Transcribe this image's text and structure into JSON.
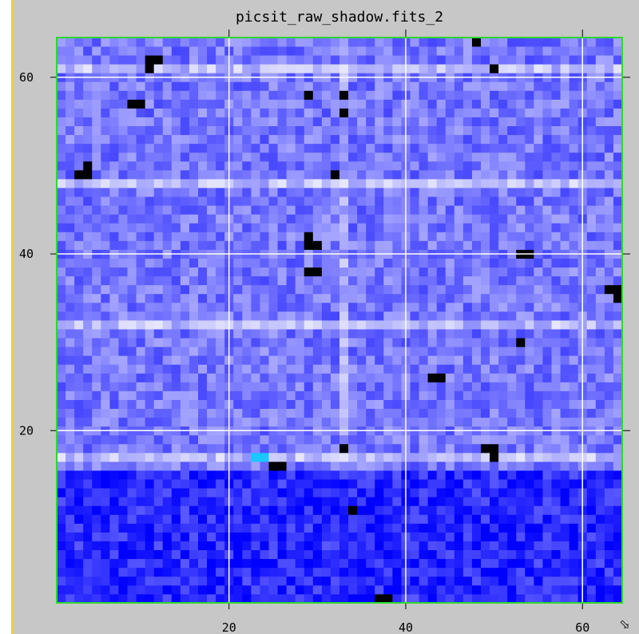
{
  "chart_data": {
    "type": "heatmap",
    "title": "picsit_raw_shadow.fits_2",
    "xlabel": "",
    "ylabel": "",
    "xlim": [
      0.5,
      64.5
    ],
    "ylim": [
      0.5,
      64.5
    ],
    "x_ticks": [
      20,
      40,
      60
    ],
    "y_ticks": [
      20,
      40,
      60
    ],
    "x_tick_labels": [
      "20",
      "40",
      "60"
    ],
    "y_tick_labels": [
      "20",
      "40",
      "60"
    ],
    "grid": true,
    "colormap": [
      "#000000",
      "#0000ff",
      "#8c8cff",
      "#d2d2ff"
    ],
    "accent_colors": {
      "grid": "#ffffff",
      "frame": "#2fd82f",
      "highlight_pixel": "#18c8ff"
    },
    "nx": 64,
    "ny": 64,
    "bright_rows": [
      17,
      32,
      48,
      61
    ],
    "dark_rows_below": 15,
    "bright_columns": [
      33
    ],
    "masked_pixels": [
      [
        48,
        64
      ],
      [
        11,
        62
      ],
      [
        12,
        62
      ],
      [
        11,
        61
      ],
      [
        50,
        61
      ],
      [
        29,
        58
      ],
      [
        33,
        58
      ],
      [
        9,
        57
      ],
      [
        10,
        57
      ],
      [
        33,
        56
      ],
      [
        4,
        50
      ],
      [
        3,
        49
      ],
      [
        4,
        49
      ],
      [
        32,
        49
      ],
      [
        29,
        42
      ],
      [
        29,
        41
      ],
      [
        30,
        41
      ],
      [
        53,
        40
      ],
      [
        54,
        40
      ],
      [
        29,
        38
      ],
      [
        30,
        38
      ],
      [
        63,
        36
      ],
      [
        64,
        36
      ],
      [
        64,
        35
      ],
      [
        53,
        30
      ],
      [
        43,
        26
      ],
      [
        44,
        26
      ],
      [
        33,
        18
      ],
      [
        49,
        18
      ],
      [
        50,
        18
      ],
      [
        50,
        17
      ],
      [
        25,
        16
      ],
      [
        26,
        16
      ],
      [
        34,
        11
      ],
      [
        37,
        1
      ],
      [
        38,
        1
      ]
    ],
    "hot_pixels": [
      [
        23,
        17
      ],
      [
        24,
        17
      ]
    ]
  },
  "ui": {
    "resize_icon": "resize-corner-icon",
    "resize_glyph": "⬂"
  }
}
